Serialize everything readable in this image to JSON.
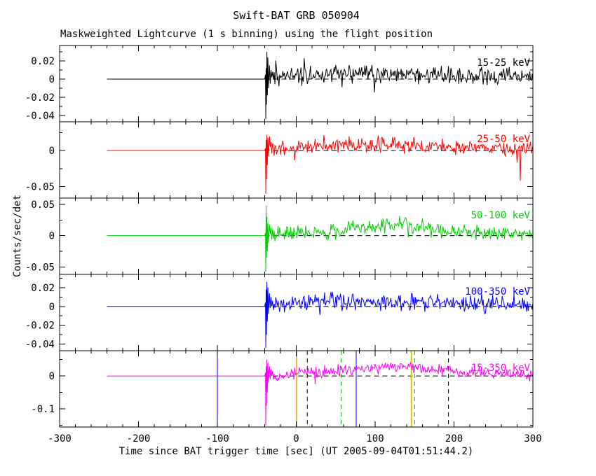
{
  "title": "Swift-BAT GRB 050904",
  "subtitle": "Maskweighted Lightcurve (1 s binning) using the flight position",
  "xlabel": "Time since BAT trigger time [sec] (UT 2005-09-04T01:51:44.2)",
  "ylabel": "Counts/sec/det",
  "chart_data": {
    "type": "line",
    "title": "Swift-BAT GRB 050904",
    "subtitle": "Maskweighted Lightcurve (1 s binning) using the flight position",
    "xlabel": "Time since BAT trigger time [sec] (UT 2005-09-04T01:51:44.2)",
    "ylabel": "Counts/sec/det",
    "x_axis": {
      "range": [
        -300,
        300
      ],
      "major_ticks": [
        -300,
        -200,
        -100,
        0,
        100,
        200,
        300
      ],
      "tick_labels": [
        "-300",
        "-200",
        "-100",
        "0",
        "100",
        "200",
        "300"
      ],
      "minor_step": 20
    },
    "zero_reference": {
      "y": 0,
      "style": "dashed",
      "x_start": -40,
      "x_end": 300
    },
    "pre_trigger_segment": {
      "y": 0,
      "x_start": -240,
      "x_end": -40
    },
    "burst_onset_time": -39,
    "panels": [
      {
        "label": "15-25 keV",
        "color": "#000000",
        "ylim": [
          -0.047,
          0.037
        ],
        "ytick_values": [
          0.02,
          0,
          -0.02,
          -0.04
        ],
        "ytick_labels": [
          "0.02",
          "0",
          "-0.02",
          "-0.04"
        ],
        "mean_profile": [
          [
            -30,
            0.003
          ],
          [
            0,
            0.005
          ],
          [
            60,
            0.006
          ],
          [
            120,
            0.0065
          ],
          [
            200,
            0.004
          ],
          [
            300,
            0.0025
          ]
        ],
        "noise_amplitude": [
          [
            -30,
            0.0105
          ],
          [
            100,
            0.01
          ],
          [
            300,
            0.0085
          ]
        ],
        "burst_spike": [
          [
            -39,
            0.005
          ],
          [
            -38.6,
            -0.044
          ],
          [
            -38.2,
            0.012
          ],
          [
            -37.8,
            -0.028
          ],
          [
            -37.2,
            0.03
          ],
          [
            -36.6,
            -0.018
          ],
          [
            -36,
            0.024
          ],
          [
            -35,
            -0.01
          ],
          [
            -34,
            0.015
          ],
          [
            -33,
            -0.005
          ],
          [
            -32,
            0.01
          ],
          [
            -31,
            0.002
          ],
          [
            -30,
            0.008
          ]
        ],
        "extra_spikes": []
      },
      {
        "label": "25-50 keV",
        "color": "#ff0000",
        "ylim": [
          -0.066,
          0.04
        ],
        "ytick_values": [
          0,
          -0.05
        ],
        "ytick_labels": [
          "0",
          "-0.05"
        ],
        "mean_profile": [
          [
            -30,
            0.002
          ],
          [
            0,
            0.004
          ],
          [
            50,
            0.008
          ],
          [
            100,
            0.009
          ],
          [
            150,
            0.008
          ],
          [
            200,
            0.005
          ],
          [
            300,
            0.003
          ]
        ],
        "noise_amplitude": [
          [
            -30,
            0.011
          ],
          [
            300,
            0.0095
          ]
        ],
        "burst_spike": [
          [
            -39,
            0.003
          ],
          [
            -38.6,
            -0.06
          ],
          [
            -38.2,
            0.015
          ],
          [
            -37.8,
            -0.04
          ],
          [
            -37.2,
            0.022
          ],
          [
            -36.6,
            -0.02
          ],
          [
            -36,
            0.018
          ],
          [
            -35,
            -0.008
          ],
          [
            -34,
            0.02
          ],
          [
            -33,
            0.005
          ],
          [
            -32,
            0.012
          ],
          [
            -31,
            -0.004
          ],
          [
            -30,
            0.01
          ]
        ],
        "extra_spikes": [
          [
            284,
            -0.042
          ]
        ]
      },
      {
        "label": "50-100 keV",
        "color": "#00d000",
        "ylim": [
          -0.062,
          0.06
        ],
        "ytick_values": [
          0.05,
          0,
          -0.05
        ],
        "ytick_labels": [
          "0.05",
          "0",
          "-0.05"
        ],
        "mean_profile": [
          [
            -30,
            0.002
          ],
          [
            0,
            0.004
          ],
          [
            50,
            0.007
          ],
          [
            90,
            0.013
          ],
          [
            120,
            0.018
          ],
          [
            160,
            0.012
          ],
          [
            200,
            0.006
          ],
          [
            300,
            0.002
          ]
        ],
        "noise_amplitude": [
          [
            -30,
            0.014
          ],
          [
            300,
            0.011
          ]
        ],
        "burst_spike": [
          [
            -39,
            0.004
          ],
          [
            -38.6,
            -0.058
          ],
          [
            -38.2,
            0.048
          ],
          [
            -37.8,
            -0.035
          ],
          [
            -37.2,
            0.03
          ],
          [
            -36.6,
            -0.025
          ],
          [
            -36,
            0.02
          ],
          [
            -35,
            -0.012
          ],
          [
            -34,
            0.018
          ],
          [
            -33,
            0.002
          ],
          [
            -32,
            0.012
          ],
          [
            -31,
            -0.006
          ],
          [
            -30,
            0.01
          ]
        ],
        "extra_spikes": []
      },
      {
        "label": "100-350 keV",
        "color": "#0000ff",
        "ylim": [
          -0.047,
          0.034
        ],
        "ytick_values": [
          0.02,
          0,
          -0.02,
          -0.04
        ],
        "ytick_labels": [
          "0.02",
          "0",
          "-0.02",
          "-0.04"
        ],
        "mean_profile": [
          [
            -30,
            0.002
          ],
          [
            0,
            0.004
          ],
          [
            60,
            0.005
          ],
          [
            120,
            0.005
          ],
          [
            200,
            0.003
          ],
          [
            300,
            0.002
          ]
        ],
        "noise_amplitude": [
          [
            -30,
            0.0095
          ],
          [
            300,
            0.0085
          ]
        ],
        "burst_spike": [
          [
            -39,
            0.004
          ],
          [
            -38.6,
            -0.044
          ],
          [
            -38.2,
            0.018
          ],
          [
            -37.8,
            -0.03
          ],
          [
            -37.2,
            0.026
          ],
          [
            -36.6,
            -0.016
          ],
          [
            -36,
            0.02
          ],
          [
            -35,
            -0.008
          ],
          [
            -34,
            0.014
          ],
          [
            -33,
            -0.002
          ],
          [
            -32,
            0.01
          ],
          [
            -31,
            0.0
          ],
          [
            -30,
            0.006
          ]
        ],
        "extra_spikes": []
      },
      {
        "label": "15-350 keV",
        "color": "#ff00ff",
        "ylim": [
          -0.155,
          0.077
        ],
        "ytick_values": [
          0,
          -0.1
        ],
        "ytick_labels": [
          "0",
          "-0.1"
        ],
        "mean_profile": [
          [
            -30,
            -0.008
          ],
          [
            -15,
            0.003
          ],
          [
            0,
            0.01
          ],
          [
            40,
            0.014
          ],
          [
            80,
            0.022
          ],
          [
            120,
            0.032
          ],
          [
            150,
            0.028
          ],
          [
            200,
            0.014
          ],
          [
            250,
            0.008
          ],
          [
            300,
            0.004
          ]
        ],
        "noise_amplitude": [
          [
            -30,
            0.018
          ],
          [
            300,
            0.014
          ]
        ],
        "burst_spike": [
          [
            -39,
            0.01
          ],
          [
            -38.6,
            -0.15
          ],
          [
            -38.2,
            0.03
          ],
          [
            -37.8,
            -0.09
          ],
          [
            -37.2,
            0.05
          ],
          [
            -36.6,
            -0.05
          ],
          [
            -36,
            0.04
          ],
          [
            -35,
            -0.02
          ],
          [
            -34,
            0.03
          ],
          [
            -33,
            -0.01
          ],
          [
            -32,
            0.02
          ],
          [
            -31,
            0.0
          ],
          [
            -30,
            0.015
          ]
        ],
        "extra_spikes": []
      }
    ],
    "time_markers": [
      {
        "x": -100,
        "color": "#0000ff",
        "style": "solid",
        "width": 1
      },
      {
        "x": 0.5,
        "color": "#ff9900",
        "style": "solid",
        "width": 1.5
      },
      {
        "x": 14,
        "color": "#000000",
        "style": "dashed",
        "width": 1
      },
      {
        "x": 57,
        "color": "#00b000",
        "style": "dashed",
        "width": 1
      },
      {
        "x": 76,
        "color": "#0000ff",
        "style": "solid",
        "width": 1
      },
      {
        "x": 146,
        "color": "#cccc00",
        "style": "solid",
        "width": 2
      },
      {
        "x": 150,
        "color": "#00b000",
        "style": "dashed",
        "width": 1
      },
      {
        "x": 193,
        "color": "#000000",
        "style": "dashed",
        "width": 1
      }
    ]
  }
}
